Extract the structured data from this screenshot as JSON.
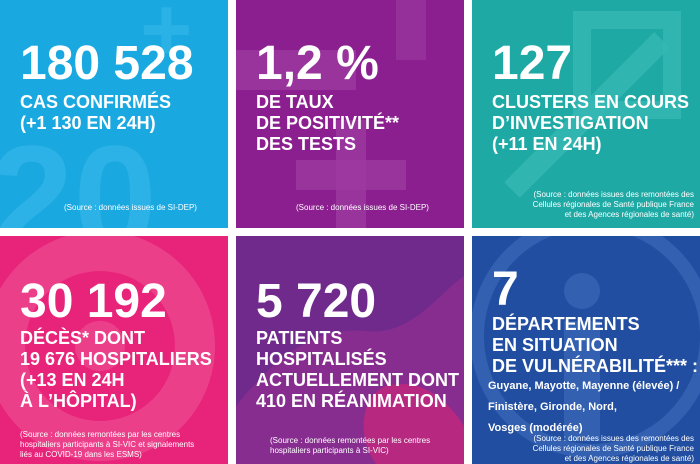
{
  "tiles": {
    "cases": {
      "value": "180 528",
      "lines": [
        "CAS CONFIRMÉS",
        "(+1 130 EN 24H)"
      ],
      "source": "(Source : données issues de SI-DEP)",
      "color": "#1aa8e0"
    },
    "positivity": {
      "value": "1,2 %",
      "lines": [
        "DE TAUX",
        "DE POSITIVITÉ**",
        "DES TESTS"
      ],
      "source": "(Source : données issues de SI-DEP)",
      "color": "#8b1f8f"
    },
    "clusters": {
      "value": "127",
      "lines": [
        "CLUSTERS EN COURS",
        "D’INVESTIGATION",
        "(+11 EN 24H)"
      ],
      "source_lines": [
        "(Source : données issues des remontées des",
        "Cellules régionales de Santé publique France",
        "et des Agences régionales de santé)"
      ],
      "color": "#1ea9a5"
    },
    "deaths": {
      "value": "30 192",
      "lines": [
        "DÉCÈS* DONT",
        "19 676 HOSPITALIERS",
        "(+13 EN 24H",
        "À L’HÔPITAL)"
      ],
      "source_lines": [
        "(Source : données remontées par les centres",
        "hospitaliers participants à SI-VIC et signalements",
        "liés au COVID-19 dans les ESMS)"
      ],
      "color": "#e8247a"
    },
    "hospital": {
      "value": "5 720",
      "lines": [
        "PATIENTS",
        "HOSPITALISÉS",
        "ACTUELLEMENT DONT",
        "410 EN RÉANIMATION"
      ],
      "source_lines": [
        "(Source : données remontées par les centres",
        "hospitaliers participants à SI-VIC)"
      ],
      "color": "#6f2a8c"
    },
    "departments": {
      "value": "7",
      "lines": [
        "DÉPARTEMENTS",
        "EN SITUATION",
        "DE VULNÉRABILITÉ*** :"
      ],
      "detail_lines": [
        "Guyane, Mayotte, Mayenne (élevée) /",
        "Finistère, Gironde, Nord,",
        "Vosges (modérée)"
      ],
      "source_lines": [
        "(Source : données issues des remontées des",
        "Cellules régionales de Santé publique France",
        "et des Agences régionales de santé)"
      ],
      "color": "#214ea0"
    }
  }
}
